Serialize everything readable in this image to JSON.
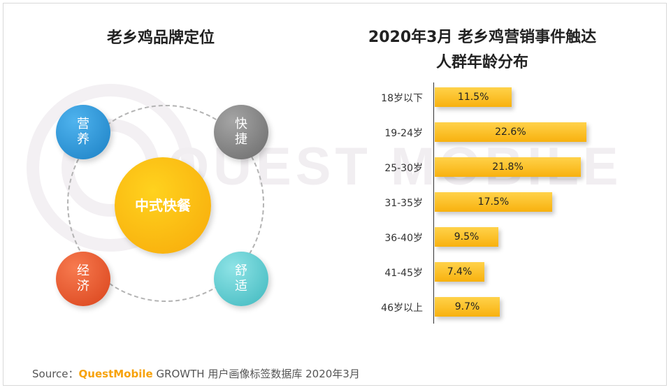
{
  "left_panel": {
    "title": "老乡鸡品牌定位",
    "center": "中式快餐",
    "nodes": {
      "nutrition": "营\n养",
      "fast": "快\n捷",
      "economy": "经\n济",
      "comfort": "舒\n适"
    }
  },
  "watermark": "QUEST MOBILE",
  "chart_data": {
    "type": "bar",
    "orientation": "horizontal",
    "title_line1": "2020年3月 老乡鸡营销事件触达",
    "title_line2": "人群年龄分布",
    "categories": [
      "18岁以下",
      "19-24岁",
      "25-30岁",
      "31-35岁",
      "36-40岁",
      "41-45岁",
      "46岁以上"
    ],
    "values": [
      11.5,
      22.6,
      21.8,
      17.5,
      9.5,
      7.4,
      9.7
    ],
    "value_labels": [
      "11.5%",
      "22.6%",
      "21.8%",
      "17.5%",
      "9.5%",
      "7.4%",
      "9.7%"
    ],
    "unit": "%",
    "xlim": [
      0,
      24.5
    ],
    "colors": {
      "bar_top": "#ffd24a",
      "bar_bottom": "#f8b10e"
    }
  },
  "source": {
    "prefix": "Source：",
    "brand": "QuestMobile",
    "suffix": " GROWTH 用户画像标签数据库 2020年3月"
  }
}
